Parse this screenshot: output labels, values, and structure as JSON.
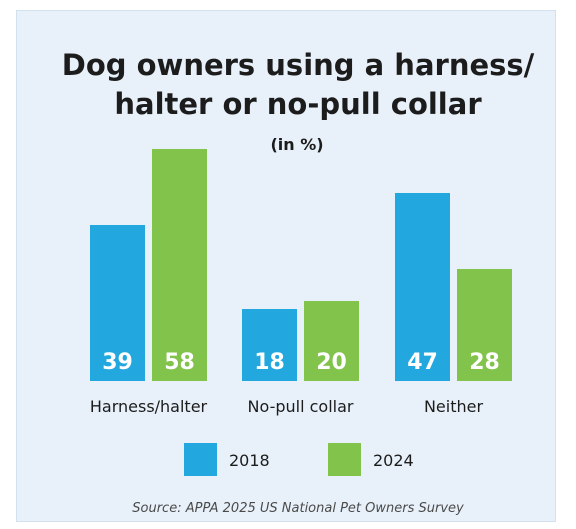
{
  "chart_data": {
    "type": "bar",
    "title_lines": [
      "Dog owners using a harness/",
      "halter or no-pull collar"
    ],
    "subtitle": "(in %)",
    "categories": [
      "Harness/halter",
      "No-pull collar",
      "Neither"
    ],
    "series": [
      {
        "name": "2018",
        "color": "#22a8df",
        "values": [
          39,
          18,
          47
        ]
      },
      {
        "name": "2024",
        "color": "#81c34b",
        "values": [
          58,
          20,
          28
        ]
      }
    ],
    "ylim": [
      0,
      60
    ],
    "grid": false,
    "legend_position": "bottom-center",
    "source": "Source: APPA 2025 US National Pet Owners Survey"
  }
}
